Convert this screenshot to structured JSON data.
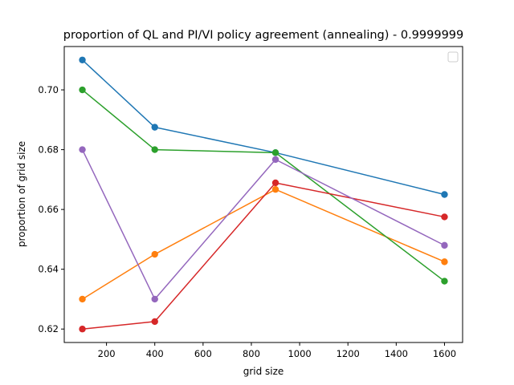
{
  "chart_data": {
    "type": "line",
    "title": "proportion of QL and PI/VI policy agreement (annealing) - 0.9999999",
    "xlabel": "grid size",
    "ylabel": "proportion of grid size",
    "x": [
      100,
      400,
      900,
      1600
    ],
    "xlim": [
      25,
      1675
    ],
    "ylim": [
      0.6155,
      0.7145
    ],
    "xticks": [
      200,
      400,
      600,
      800,
      1000,
      1200,
      1400,
      1600
    ],
    "yticks": [
      0.62,
      0.64,
      0.66,
      0.68,
      0.7
    ],
    "xtick_labels": [
      "200",
      "400",
      "600",
      "800",
      "1000",
      "1200",
      "1400",
      "1600"
    ],
    "ytick_labels": [
      "0.62",
      "0.64",
      "0.66",
      "0.68",
      "0.70"
    ],
    "grid": false,
    "legend": {
      "placement": "top-right",
      "entries": []
    },
    "series": [
      {
        "color": "#1f77b4",
        "values": [
          0.71,
          0.6875,
          0.679,
          0.665
        ]
      },
      {
        "color": "#ff7f0e",
        "values": [
          0.63,
          0.645,
          0.6667,
          0.6425
        ]
      },
      {
        "color": "#2ca02c",
        "values": [
          0.7,
          0.68,
          0.679,
          0.636
        ]
      },
      {
        "color": "#d62728",
        "values": [
          0.62,
          0.6225,
          0.6689,
          0.6575
        ]
      },
      {
        "color": "#9467bd",
        "values": [
          0.68,
          0.63,
          0.6767,
          0.648
        ]
      }
    ]
  }
}
